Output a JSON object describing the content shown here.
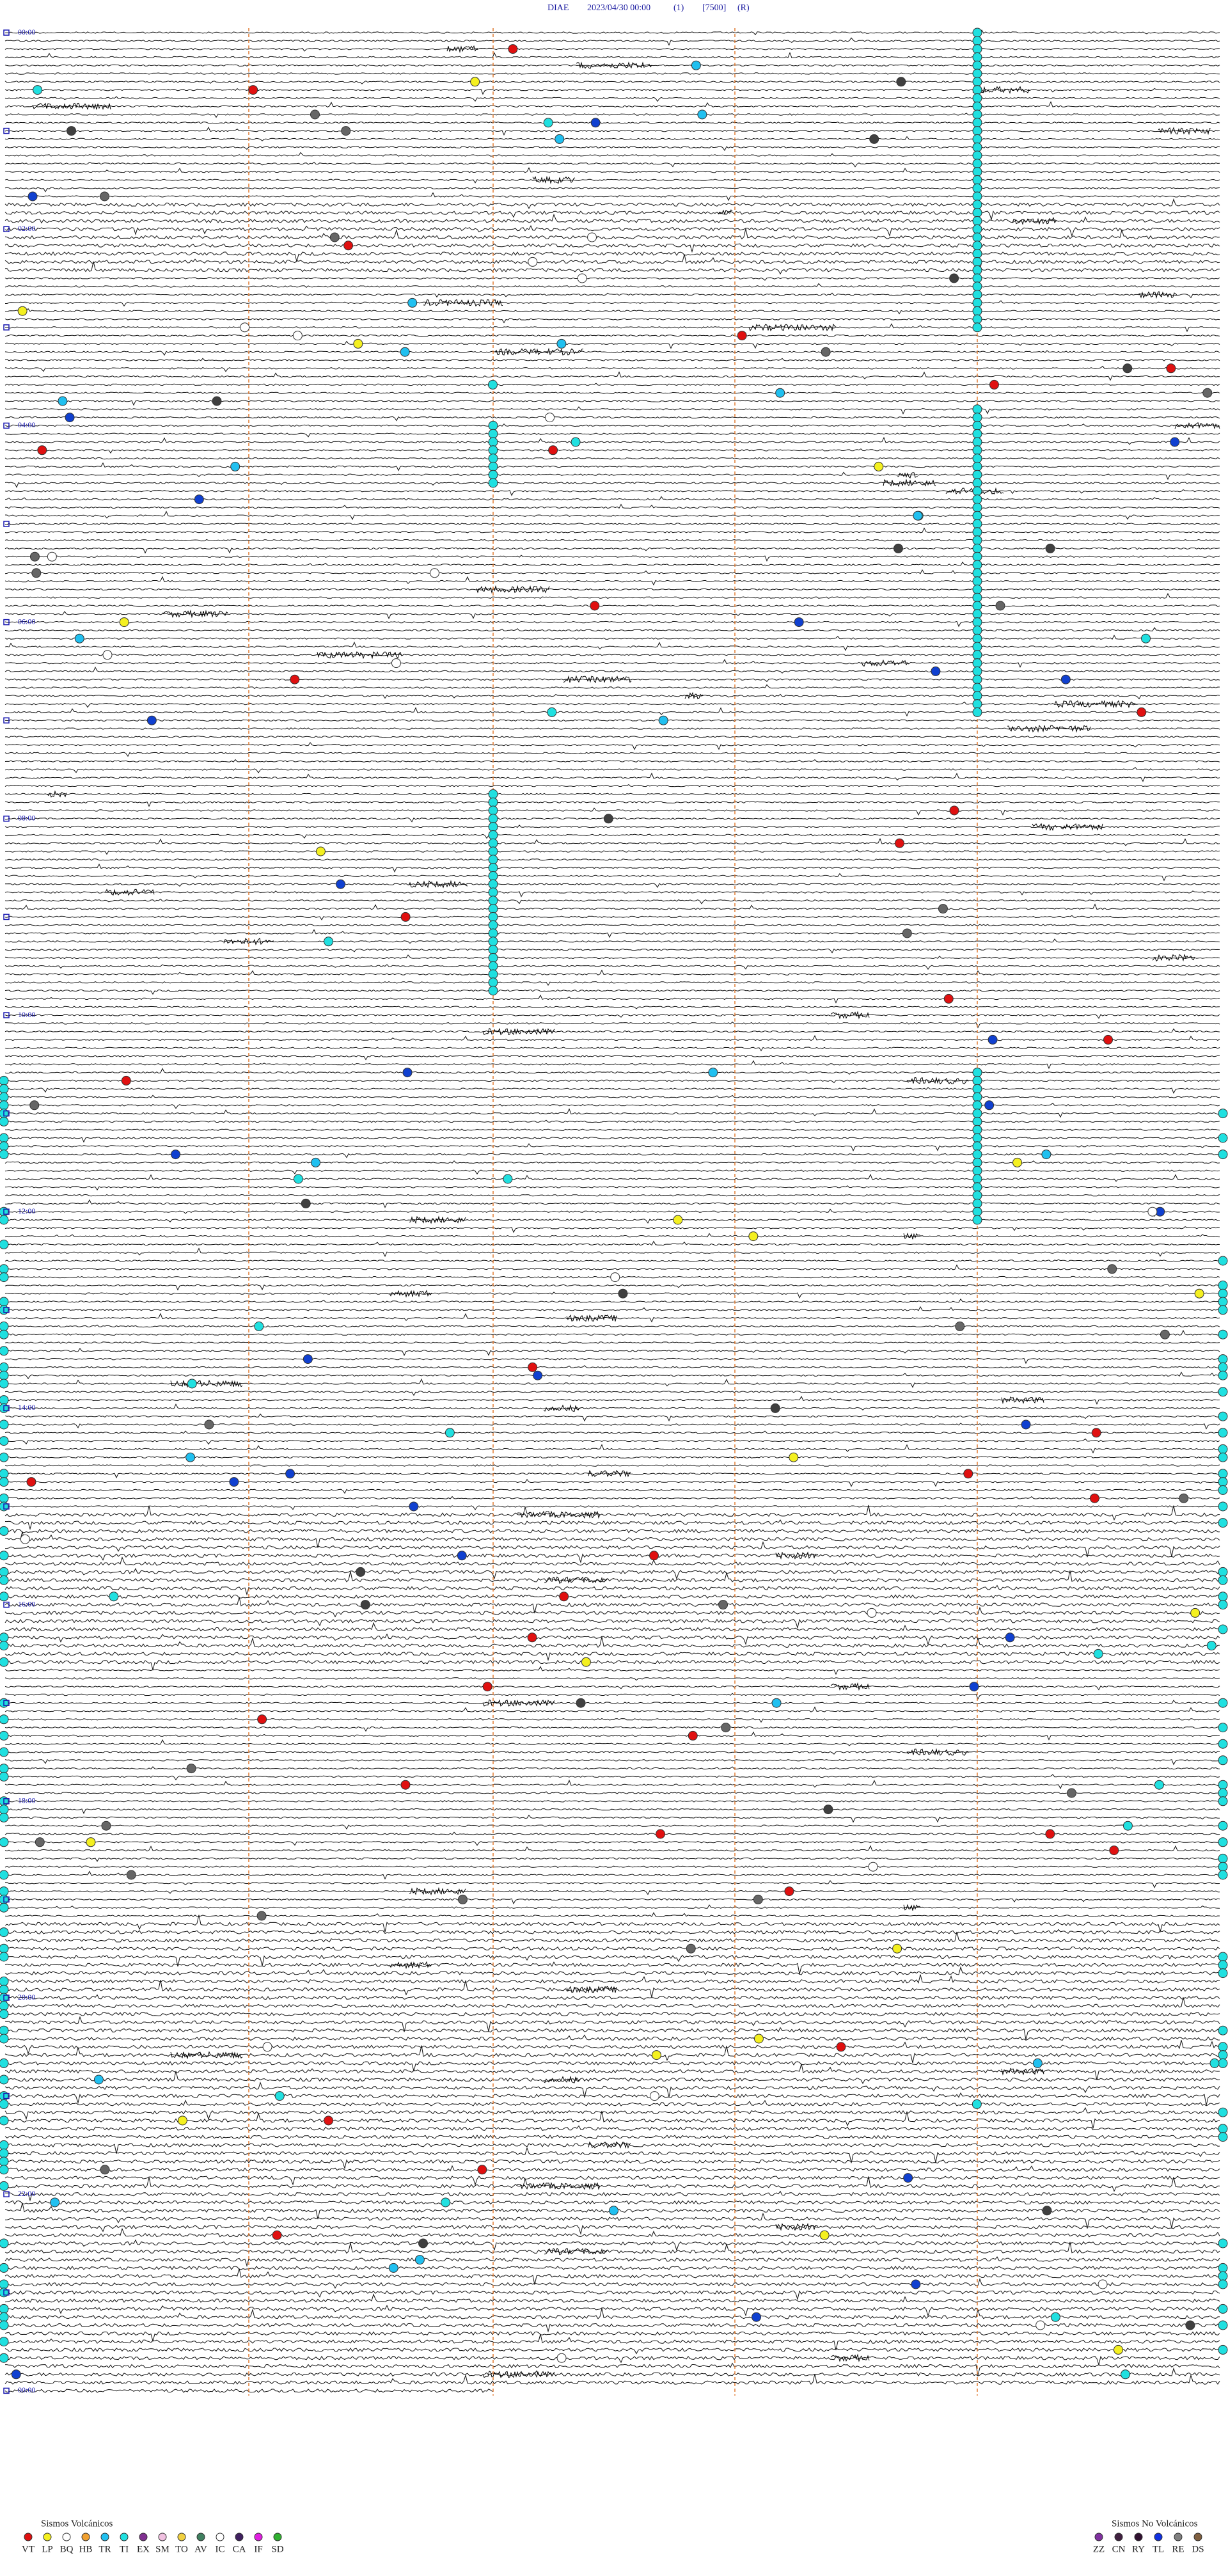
{
  "header": {
    "station": "DIAE",
    "datetime": "2023/04/30 00:00",
    "channel": "(1)",
    "scale": "[7500]",
    "mode": "(R)"
  },
  "time_labels": [
    "00:00",
    "02:00",
    "04:00",
    "06:00",
    "08:00",
    "10:00",
    "12:00",
    "14:00",
    "16:00",
    "18:00",
    "20:00",
    "22:00",
    "00:00"
  ],
  "legend_volcanic": {
    "title": "Sismos Volcánicos",
    "codes": [
      "VT",
      "LP",
      "BQ",
      "HB",
      "TR",
      "TI",
      "EX",
      "SM",
      "TO",
      "AV",
      "IC",
      "CA",
      "IF",
      "SD"
    ]
  },
  "legend_non_volcanic": {
    "title": "Sismos No Volcánicos",
    "codes": [
      "ZZ",
      "CN",
      "RY",
      "TL",
      "RE",
      "DS"
    ]
  }
}
